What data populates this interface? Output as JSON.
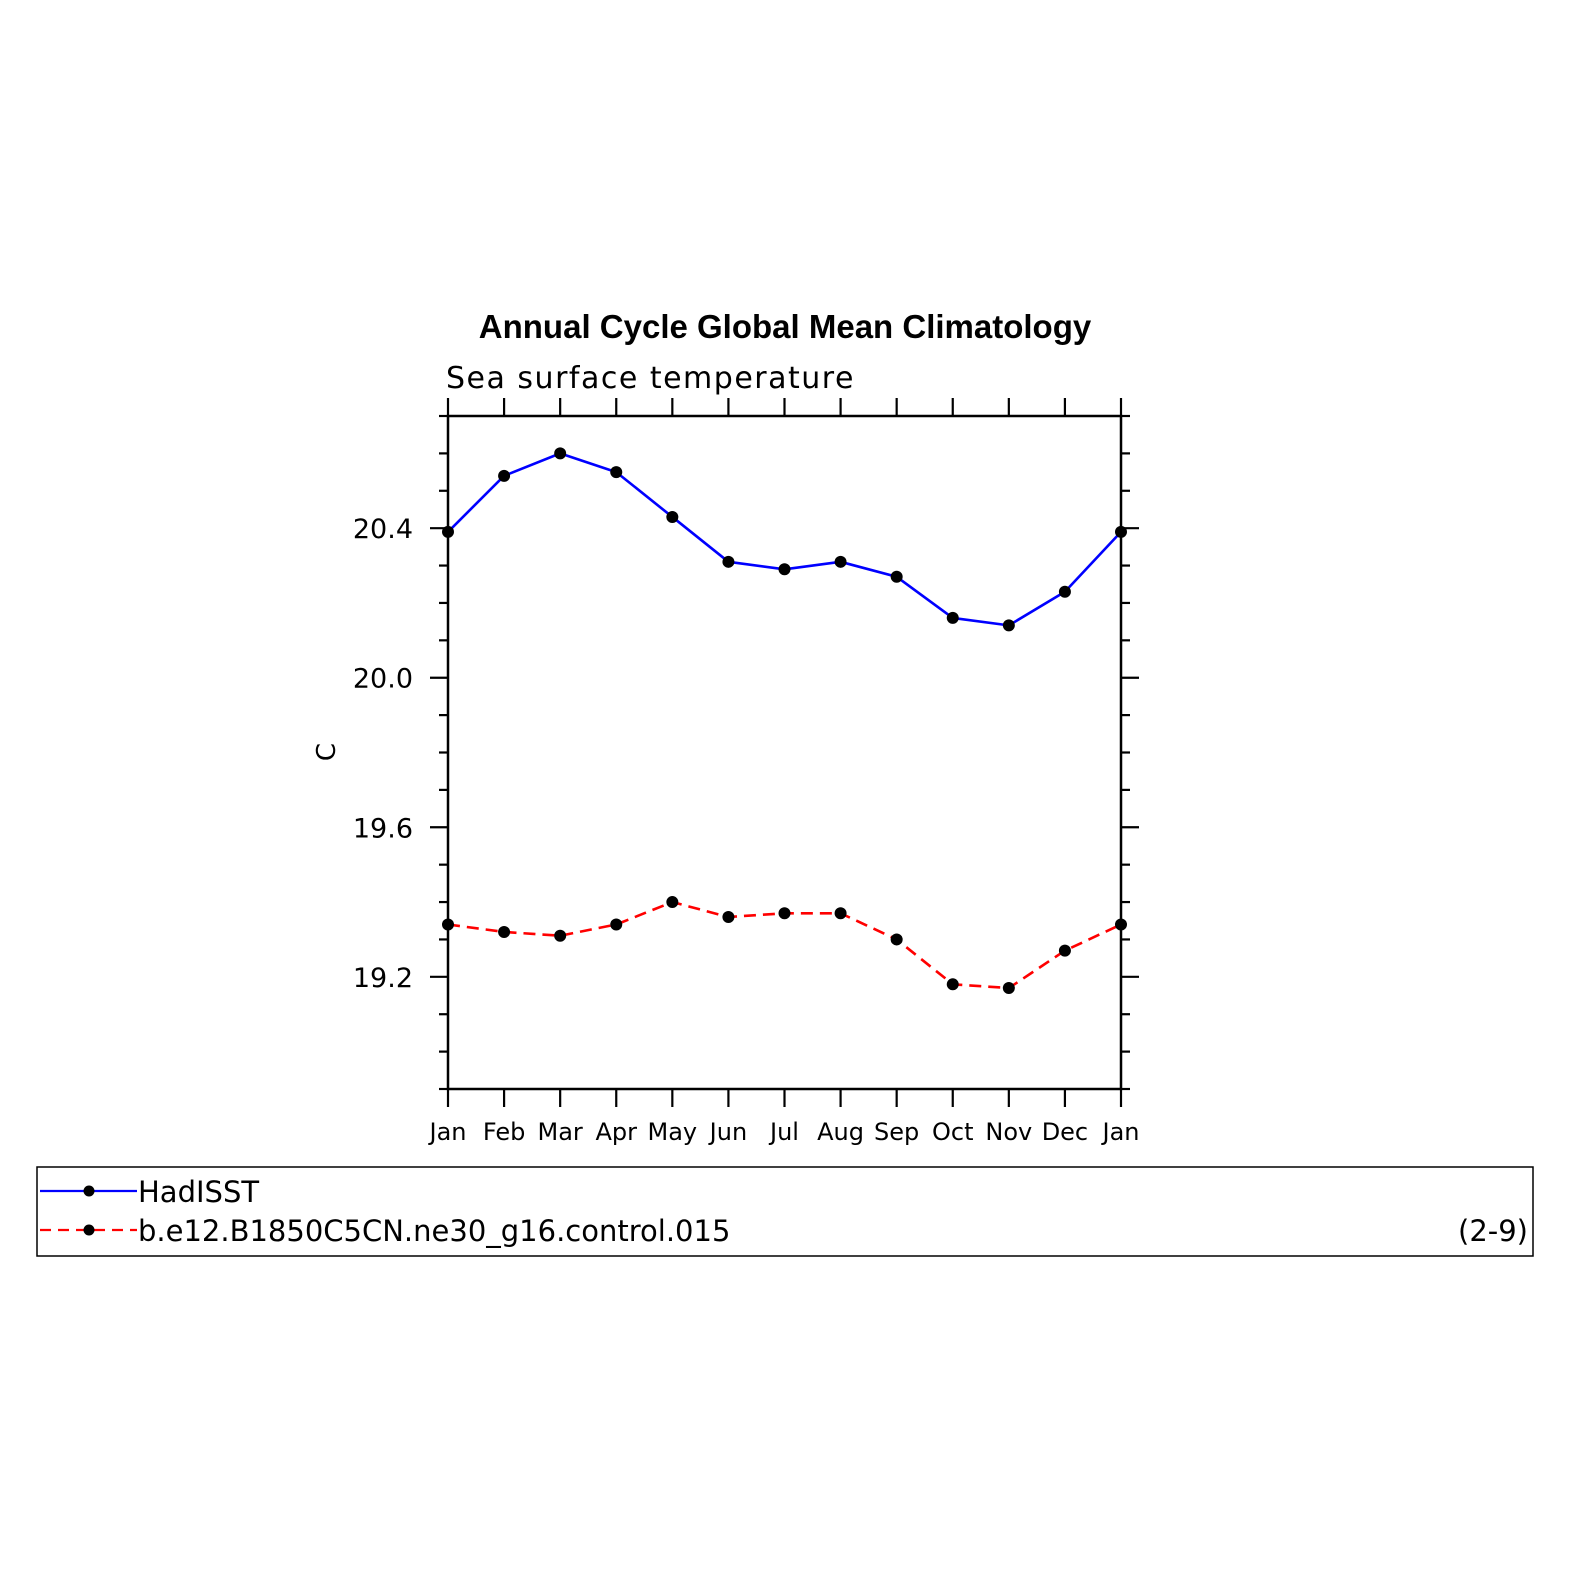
{
  "chart_data": {
    "type": "line",
    "title": "Annual Cycle Global Mean Climatology",
    "subtitle": "Sea surface temperature",
    "xlabel": "",
    "ylabel": "C",
    "categories": [
      "Jan",
      "Feb",
      "Mar",
      "Apr",
      "May",
      "Jun",
      "Jul",
      "Aug",
      "Sep",
      "Oct",
      "Nov",
      "Dec",
      "Jan"
    ],
    "ylim": [
      18.9,
      20.7
    ],
    "yticks": [
      "20.4",
      "20.0",
      "19.6",
      "19.2"
    ],
    "grid": false,
    "legend_position": "bottom",
    "series": [
      {
        "name": "HadISST",
        "color": "#0000ff",
        "line_style": "solid",
        "marker": "filled-circle",
        "values": [
          20.39,
          20.54,
          20.6,
          20.55,
          20.43,
          20.31,
          20.29,
          20.31,
          20.27,
          20.16,
          20.14,
          20.23,
          20.39
        ]
      },
      {
        "name": "b.e12.B1850C5CN.ne30_g16.control.015",
        "legend_note": "(2-9)",
        "color": "#ff0000",
        "line_style": "dashed",
        "marker": "filled-circle",
        "values": [
          19.34,
          19.32,
          19.31,
          19.34,
          19.4,
          19.36,
          19.37,
          19.37,
          19.3,
          19.18,
          19.17,
          19.27,
          19.34
        ]
      }
    ]
  }
}
